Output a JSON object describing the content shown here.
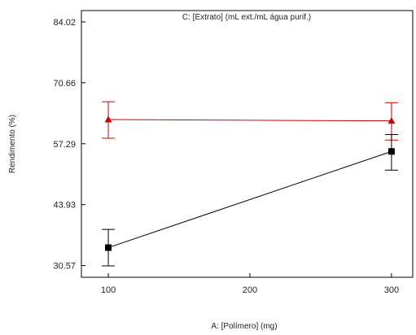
{
  "chart_data": {
    "type": "line",
    "title": "C: [Extrato] (mL ext./mL água purif.)",
    "xlabel": "A: [Polímero] (mg)",
    "ylabel": "Rendimento (%)",
    "x_ticks": [
      100,
      200,
      300
    ],
    "y_ticks": [
      30.57,
      43.93,
      57.29,
      70.66,
      84.02
    ],
    "y_tick_labels": [
      "30.57",
      "43.93",
      "57.29",
      "70.66",
      "84.02"
    ],
    "x_tick_labels": [
      "100",
      "200",
      "300"
    ],
    "xlim": [
      81,
      315
    ],
    "ylim": [
      28.0,
      86.5
    ],
    "grid": false,
    "series": [
      {
        "color": "#cc0000",
        "marker": "triangle",
        "x": [
          100,
          300
        ],
        "y": [
          62.6,
          62.3
        ],
        "y_low": [
          58.5,
          58.1
        ],
        "y_high": [
          66.5,
          66.3
        ]
      },
      {
        "color": "#000000",
        "marker": "square",
        "x": [
          100,
          300
        ],
        "y": [
          34.5,
          55.6
        ],
        "y_low": [
          30.5,
          51.5
        ],
        "y_high": [
          38.5,
          59.3
        ]
      }
    ]
  }
}
